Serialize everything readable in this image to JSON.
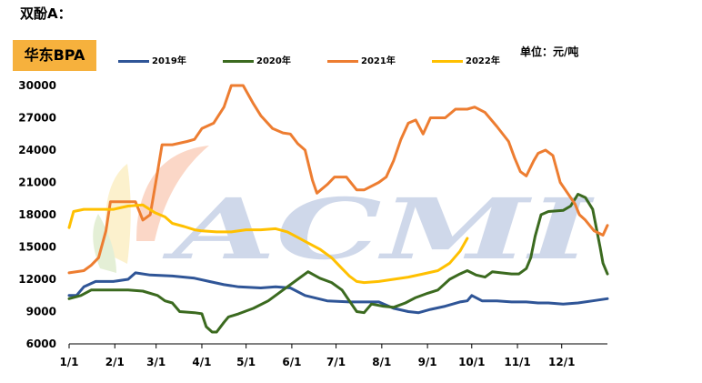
{
  "heading": "双酚A：",
  "chart_data": {
    "type": "line",
    "title": "华东BPA",
    "unit": "单位：元/吨",
    "watermark": "ACMI",
    "xlabel": "",
    "ylabel": "",
    "ylim": [
      6000,
      30000
    ],
    "yticks": [
      6000,
      9000,
      12000,
      15000,
      18000,
      21000,
      24000,
      27000,
      30000
    ],
    "ytick_labels": [
      "6000",
      "9000",
      "12000",
      "15000",
      "18000",
      "21000",
      "24000",
      "27000",
      "30000"
    ],
    "xlim_days": [
      0,
      365
    ],
    "xtick_labels": [
      "1/1",
      "2/1",
      "3/1",
      "4/1",
      "5/1",
      "6/1",
      "7/1",
      "8/1",
      "9/1",
      "10/1",
      "11/1",
      "12/1"
    ],
    "xtick_days": [
      0,
      31,
      59,
      90,
      120,
      151,
      181,
      212,
      243,
      273,
      304,
      334
    ],
    "legend_position": "top",
    "grid": false,
    "series": [
      {
        "name": "2019年",
        "color": "#2f5597",
        "points": [
          [
            0,
            10500
          ],
          [
            5,
            10500
          ],
          [
            10,
            11300
          ],
          [
            18,
            11800
          ],
          [
            30,
            11800
          ],
          [
            40,
            12000
          ],
          [
            45,
            12600
          ],
          [
            55,
            12400
          ],
          [
            70,
            12300
          ],
          [
            85,
            12100
          ],
          [
            95,
            11800
          ],
          [
            105,
            11500
          ],
          [
            115,
            11300
          ],
          [
            130,
            11200
          ],
          [
            140,
            11300
          ],
          [
            150,
            11200
          ],
          [
            160,
            10500
          ],
          [
            175,
            10000
          ],
          [
            190,
            9900
          ],
          [
            200,
            9900
          ],
          [
            210,
            9900
          ],
          [
            220,
            9300
          ],
          [
            230,
            9000
          ],
          [
            237,
            8900
          ],
          [
            245,
            9200
          ],
          [
            255,
            9500
          ],
          [
            265,
            9900
          ],
          [
            270,
            10000
          ],
          [
            273,
            10500
          ],
          [
            280,
            10000
          ],
          [
            290,
            10000
          ],
          [
            300,
            9900
          ],
          [
            310,
            9900
          ],
          [
            318,
            9800
          ],
          [
            325,
            9800
          ],
          [
            335,
            9700
          ],
          [
            345,
            9800
          ],
          [
            355,
            10000
          ],
          [
            365,
            10200
          ]
        ]
      },
      {
        "name": "2020年",
        "color": "#3b6a1f",
        "points": [
          [
            0,
            10200
          ],
          [
            8,
            10500
          ],
          [
            15,
            11000
          ],
          [
            40,
            11000
          ],
          [
            50,
            10900
          ],
          [
            60,
            10500
          ],
          [
            65,
            10000
          ],
          [
            70,
            9800
          ],
          [
            75,
            9000
          ],
          [
            85,
            8900
          ],
          [
            90,
            8800
          ],
          [
            93,
            7600
          ],
          [
            97,
            7100
          ],
          [
            100,
            7100
          ],
          [
            105,
            8000
          ],
          [
            108,
            8500
          ],
          [
            115,
            8800
          ],
          [
            125,
            9300
          ],
          [
            135,
            10000
          ],
          [
            145,
            11000
          ],
          [
            155,
            12000
          ],
          [
            162,
            12700
          ],
          [
            170,
            12100
          ],
          [
            178,
            11700
          ],
          [
            185,
            11000
          ],
          [
            190,
            10000
          ],
          [
            195,
            9000
          ],
          [
            200,
            8900
          ],
          [
            205,
            9700
          ],
          [
            213,
            9500
          ],
          [
            220,
            9400
          ],
          [
            228,
            9800
          ],
          [
            235,
            10300
          ],
          [
            243,
            10700
          ],
          [
            250,
            11000
          ],
          [
            258,
            12000
          ],
          [
            265,
            12500
          ],
          [
            270,
            12800
          ],
          [
            276,
            12400
          ],
          [
            282,
            12200
          ],
          [
            287,
            12700
          ],
          [
            293,
            12600
          ],
          [
            300,
            12500
          ],
          [
            305,
            12500
          ],
          [
            310,
            13000
          ],
          [
            313,
            14000
          ],
          [
            316,
            16000
          ],
          [
            320,
            18000
          ],
          [
            325,
            18300
          ],
          [
            335,
            18400
          ],
          [
            340,
            18800
          ],
          [
            345,
            19900
          ],
          [
            350,
            19600
          ],
          [
            355,
            18500
          ],
          [
            360,
            15000
          ],
          [
            362,
            13500
          ],
          [
            365,
            12500
          ]
        ]
      },
      {
        "name": "2021年",
        "color": "#ed7d31",
        "points": [
          [
            0,
            12600
          ],
          [
            10,
            12800
          ],
          [
            15,
            13300
          ],
          [
            20,
            14000
          ],
          [
            25,
            16500
          ],
          [
            28,
            19200
          ],
          [
            35,
            19200
          ],
          [
            45,
            19200
          ],
          [
            50,
            17500
          ],
          [
            55,
            18000
          ],
          [
            60,
            22000
          ],
          [
            63,
            24500
          ],
          [
            70,
            24500
          ],
          [
            80,
            24800
          ],
          [
            85,
            25000
          ],
          [
            90,
            26000
          ],
          [
            98,
            26500
          ],
          [
            105,
            28000
          ],
          [
            110,
            30000
          ],
          [
            118,
            30000
          ],
          [
            125,
            28300
          ],
          [
            130,
            27200
          ],
          [
            138,
            26000
          ],
          [
            145,
            25600
          ],
          [
            150,
            25500
          ],
          [
            155,
            24600
          ],
          [
            160,
            24000
          ],
          [
            165,
            21200
          ],
          [
            168,
            20000
          ],
          [
            175,
            20800
          ],
          [
            180,
            21500
          ],
          [
            188,
            21500
          ],
          [
            195,
            20300
          ],
          [
            200,
            20300
          ],
          [
            210,
            21000
          ],
          [
            215,
            21500
          ],
          [
            220,
            23000
          ],
          [
            225,
            25000
          ],
          [
            230,
            26500
          ],
          [
            235,
            26800
          ],
          [
            240,
            25500
          ],
          [
            245,
            27000
          ],
          [
            255,
            27000
          ],
          [
            262,
            27800
          ],
          [
            270,
            27800
          ],
          [
            275,
            28000
          ],
          [
            282,
            27500
          ],
          [
            290,
            26200
          ],
          [
            298,
            24800
          ],
          [
            302,
            23300
          ],
          [
            306,
            22000
          ],
          [
            310,
            21600
          ],
          [
            315,
            23000
          ],
          [
            318,
            23700
          ],
          [
            323,
            24000
          ],
          [
            328,
            23500
          ],
          [
            333,
            21000
          ],
          [
            338,
            20000
          ],
          [
            343,
            19000
          ],
          [
            346,
            18000
          ],
          [
            350,
            17500
          ],
          [
            353,
            17000
          ],
          [
            356,
            16500
          ],
          [
            359,
            16300
          ],
          [
            362,
            16100
          ],
          [
            365,
            17000
          ]
        ]
      },
      {
        "name": "2022年",
        "color": "#ffc000",
        "points": [
          [
            0,
            16800
          ],
          [
            3,
            18300
          ],
          [
            10,
            18500
          ],
          [
            20,
            18500
          ],
          [
            30,
            18500
          ],
          [
            40,
            18800
          ],
          [
            50,
            18900
          ],
          [
            58,
            18200
          ],
          [
            65,
            17800
          ],
          [
            70,
            17200
          ],
          [
            78,
            16900
          ],
          [
            85,
            16600
          ],
          [
            90,
            16500
          ],
          [
            100,
            16400
          ],
          [
            110,
            16400
          ],
          [
            120,
            16600
          ],
          [
            130,
            16600
          ],
          [
            140,
            16700
          ],
          [
            148,
            16400
          ],
          [
            155,
            15900
          ],
          [
            163,
            15300
          ],
          [
            170,
            14800
          ],
          [
            178,
            14000
          ],
          [
            185,
            13000
          ],
          [
            190,
            12300
          ],
          [
            195,
            11800
          ],
          [
            200,
            11700
          ],
          [
            210,
            11800
          ],
          [
            220,
            12000
          ],
          [
            230,
            12200
          ],
          [
            240,
            12500
          ],
          [
            250,
            12800
          ],
          [
            258,
            13500
          ],
          [
            265,
            14600
          ],
          [
            270,
            15800
          ]
        ]
      }
    ]
  }
}
